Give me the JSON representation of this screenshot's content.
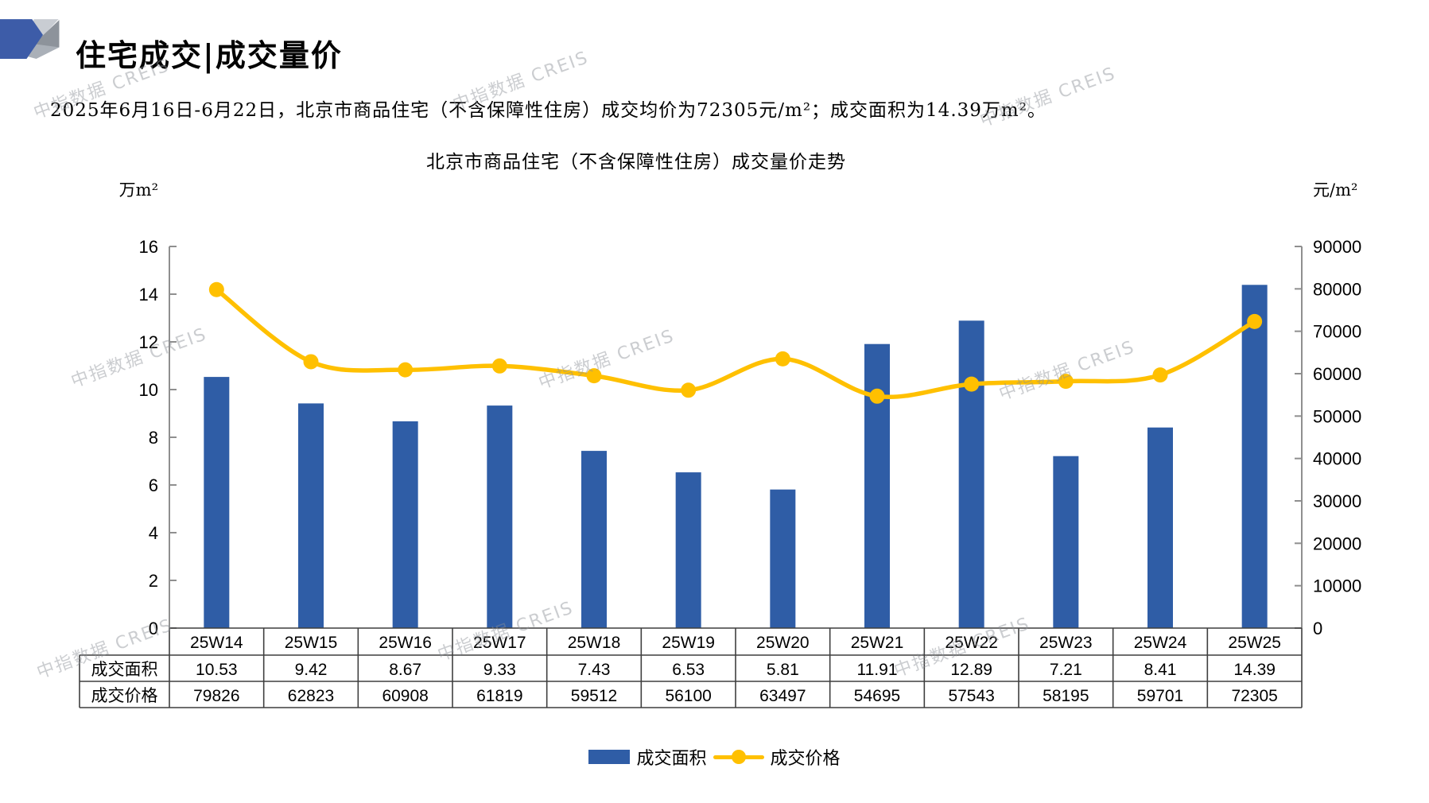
{
  "header": {
    "title": "住宅成交|成交量价"
  },
  "summary": {
    "text": "2025年6月16日-6月22日，北京市商品住宅（不含保障性住房）成交均价为72305元/m²；成交面积为14.39万m²。"
  },
  "watermark": {
    "text": "中指数据 CREIS"
  },
  "chart_data": {
    "type": "bar",
    "title": "北京市商品住宅（不含保障性住房）成交量价走势",
    "categories": [
      "25W14",
      "25W15",
      "25W16",
      "25W17",
      "25W18",
      "25W19",
      "25W20",
      "25W21",
      "25W22",
      "25W23",
      "25W24",
      "25W25"
    ],
    "series": [
      {
        "name": "成交面积",
        "type": "bar",
        "axis": "left",
        "color": "#2f5da6",
        "values": [
          10.53,
          9.42,
          8.67,
          9.33,
          7.43,
          6.53,
          5.81,
          11.91,
          12.89,
          7.21,
          8.41,
          14.39
        ]
      },
      {
        "name": "成交价格",
        "type": "line",
        "axis": "right",
        "color": "#ffc000",
        "values": [
          79826,
          62823,
          60908,
          61819,
          59512,
          56100,
          63497,
          54695,
          57543,
          58195,
          59701,
          72305
        ]
      }
    ],
    "left_axis": {
      "label": "万m²",
      "min": 0,
      "max": 16,
      "step": 2,
      "ticks": [
        "0",
        "2",
        "4",
        "6",
        "8",
        "10",
        "12",
        "14",
        "16"
      ]
    },
    "right_axis": {
      "label": "元/m²",
      "min": 0,
      "max": 90000,
      "step": 10000,
      "ticks": [
        "0",
        "10000",
        "20000",
        "30000",
        "40000",
        "50000",
        "60000",
        "70000",
        "80000",
        "90000"
      ]
    },
    "grid": false,
    "legend_position": "bottom"
  },
  "table": {
    "row_headers": [
      "成交面积",
      "成交价格"
    ]
  }
}
